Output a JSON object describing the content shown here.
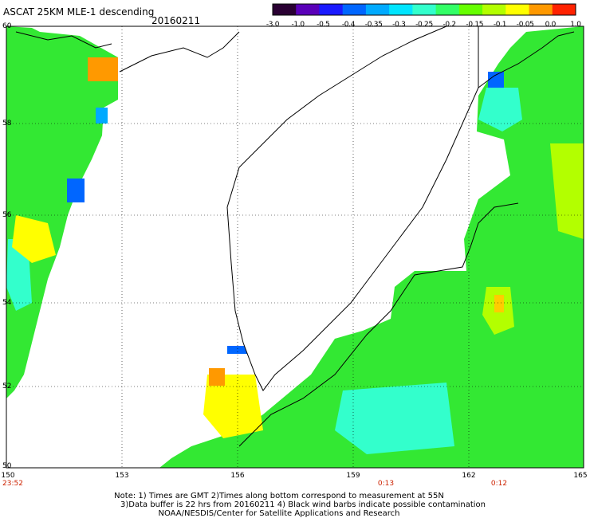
{
  "title": "ASCAT 25KM MLE-1 descending",
  "date": "20160211",
  "colorbar": {
    "labels": [
      "-3.0",
      "-1.0",
      "-0.5",
      "-0.4",
      "-0.35",
      "-0.3",
      "-0.25",
      "-0.2",
      "-0.15",
      "-0.1",
      "-0.05",
      "0.0",
      "1.0"
    ],
    "colors": [
      "#2a0033",
      "#5a00b8",
      "#1a1aff",
      "#0066ff",
      "#00aaff",
      "#00e5ff",
      "#33ffcc",
      "#33ff66",
      "#66ff00",
      "#b3ff00",
      "#ffff00",
      "#ff9900",
      "#ff2200"
    ]
  },
  "map": {
    "lat_labels": [
      "60",
      "58",
      "56",
      "54",
      "52",
      "50"
    ],
    "lon_labels": [
      "150",
      "153",
      "156",
      "159",
      "162",
      "165"
    ],
    "time_labels": [
      "23:52",
      "0:13",
      "0:12"
    ],
    "ocean_color": "#33e833",
    "land_color": "#ffffff"
  },
  "notes": {
    "line1": "Note: 1) Times are GMT 2)Times along bottom correspond to measurement at 55N",
    "line2": "3)Data buffer is 22 hrs from 20160211 4) Black wind barbs indicate possible contamination",
    "line3": "NOAA/NESDIS/Center for Satellite Applications and Research"
  }
}
